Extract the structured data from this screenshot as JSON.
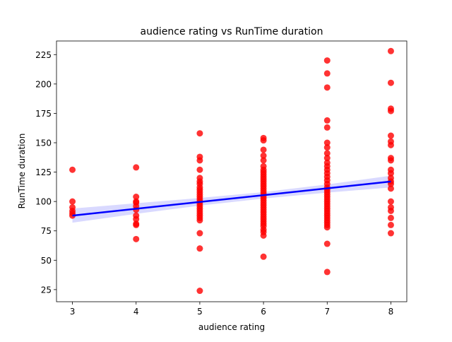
{
  "chart_data": {
    "type": "scatter",
    "title": "audience rating vs RunTime duration",
    "xlabel": "audience rating",
    "ylabel": "RunTime duration",
    "xlim": [
      2.75,
      8.25
    ],
    "ylim": [
      14.7,
      236.6
    ],
    "xticks": [
      3,
      4,
      5,
      6,
      7,
      8
    ],
    "yticks": [
      25,
      50,
      75,
      100,
      125,
      150,
      175,
      200,
      225
    ],
    "grid": false,
    "colors": {
      "points": "#ff0000",
      "regression": "#0000ff",
      "ci_band": "#0000ff"
    },
    "regression": {
      "x": [
        3,
        8
      ],
      "y": [
        88,
        117
      ]
    },
    "confidence_band": {
      "x": [
        3,
        4,
        5,
        6,
        7,
        8
      ],
      "lower": [
        82,
        89.5,
        96.5,
        102.5,
        107.5,
        112
      ],
      "upper": [
        94,
        98.5,
        103,
        108,
        114.5,
        122
      ]
    },
    "series": [
      {
        "x": 3,
        "y": [
          127,
          100,
          95,
          92,
          90,
          88
        ]
      },
      {
        "x": 4,
        "y": [
          129,
          104,
          100,
          99,
          96,
          93,
          88,
          85,
          81,
          80,
          68
        ]
      },
      {
        "x": 5,
        "y": [
          158,
          138,
          135,
          127,
          120,
          117,
          115,
          112,
          110,
          108,
          106,
          104,
          102,
          100,
          98,
          96,
          94,
          92,
          90,
          88,
          86,
          84,
          73,
          60,
          24
        ]
      },
      {
        "x": 6,
        "y": [
          154,
          152,
          144,
          139,
          135,
          130,
          127,
          125,
          123,
          121,
          119,
          117,
          115,
          113,
          111,
          109,
          107,
          105,
          103,
          101,
          99,
          97,
          95,
          93,
          91,
          89,
          87,
          85,
          83,
          81,
          79,
          76,
          74,
          71,
          53
        ]
      },
      {
        "x": 7,
        "y": [
          220,
          209,
          197,
          169,
          163,
          150,
          146,
          141,
          137,
          133,
          130,
          127,
          124,
          121,
          118,
          115,
          112,
          110,
          108,
          106,
          104,
          102,
          100,
          98,
          96,
          94,
          92,
          90,
          88,
          86,
          84,
          82,
          80,
          78,
          64,
          40
        ]
      },
      {
        "x": 8,
        "y": [
          228,
          201,
          179,
          177,
          156,
          151,
          148,
          137,
          135,
          127,
          124,
          120,
          117,
          115,
          111,
          100,
          95,
          92,
          86,
          80,
          73
        ]
      }
    ]
  }
}
